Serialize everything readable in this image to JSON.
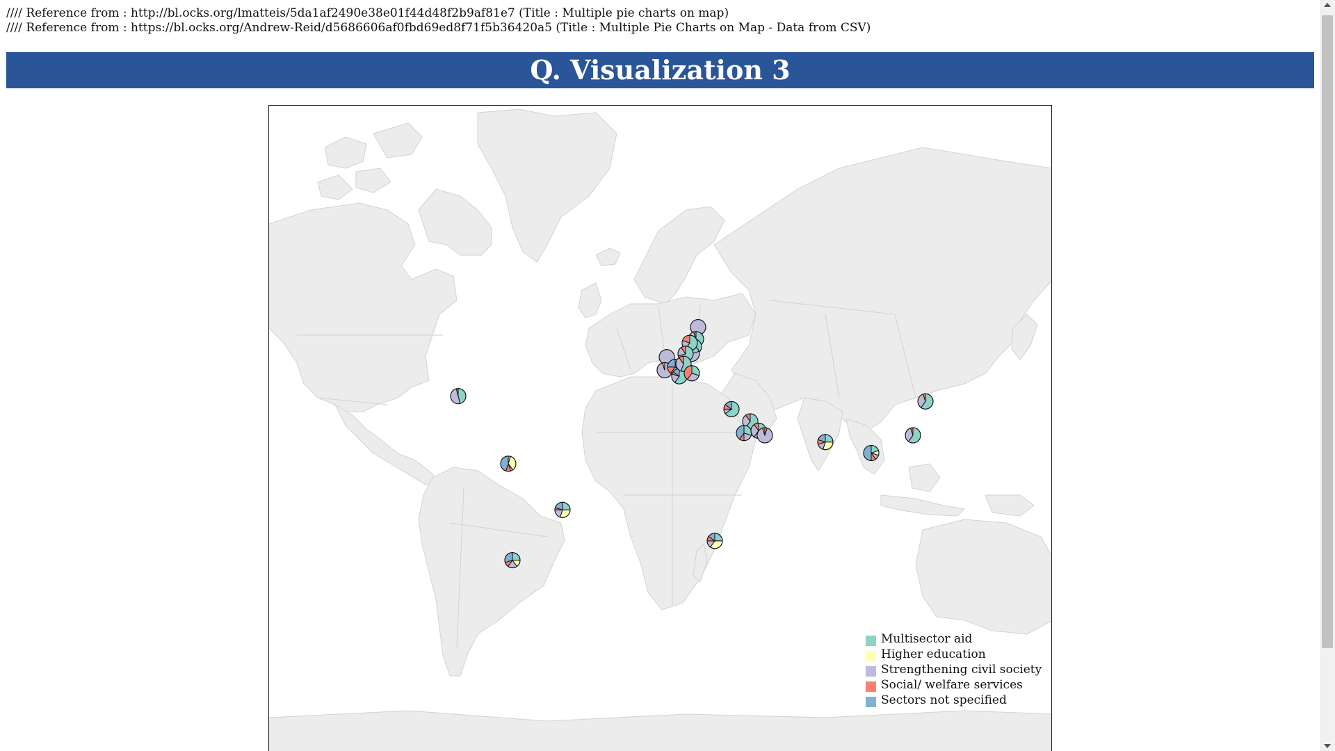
{
  "references": [
    "//// Reference from : http://bl.ocks.org/lmatteis/5da1af2490e38e01f44d48f2b9af81e7 (Title : Multiple pie charts on map)",
    "//// Reference from : https://bl.ocks.org/Andrew-Reid/d5686606af0fbd69ed8f71f5b36420a5 (Title : Multiple Pie Charts on Map - Data from CSV)"
  ],
  "title": "Q. Visualization 3",
  "categories": [
    {
      "label": "Multisector aid",
      "color": "#8dd3c7"
    },
    {
      "label": "Higher education",
      "color": "#ffffb3"
    },
    {
      "label": "Strengthening civil society",
      "color": "#bebada"
    },
    {
      "label": "Social/ welfare services",
      "color": "#fb8072"
    },
    {
      "label": "Sectors not specified",
      "color": "#80b1d3"
    }
  ],
  "map": {
    "land_color": "#ececec",
    "border_color": "#d2d2d2",
    "pie_stroke": "#111111"
  },
  "chart_data": {
    "type": "pie",
    "pies": [
      {
        "lon": -97,
        "lat": 39,
        "values": [
          0.46,
          0,
          0.5,
          0,
          0.04
        ]
      },
      {
        "lon": -73,
        "lat": 10,
        "values": [
          0.05,
          0.35,
          0.05,
          0.1,
          0.45
        ]
      },
      {
        "lon": -47,
        "lat": -12,
        "values": [
          0.25,
          0.3,
          0.2,
          0.05,
          0.2
        ]
      },
      {
        "lon": -71,
        "lat": -34,
        "values": [
          0.25,
          0.15,
          0.2,
          0.1,
          0.3
        ]
      },
      {
        "lon": 26,
        "lat": -26,
        "values": [
          0.25,
          0.35,
          0.15,
          0.1,
          0.15
        ]
      },
      {
        "lon": 18,
        "lat": 60,
        "values": [
          0,
          0,
          1,
          0,
          0
        ]
      },
      {
        "lon": 17,
        "lat": 57,
        "values": [
          0.6,
          0.05,
          0.3,
          0.05,
          0
        ]
      },
      {
        "lon": 16,
        "lat": 55,
        "values": [
          0.5,
          0,
          0.4,
          0.05,
          0.05
        ]
      },
      {
        "lon": 15,
        "lat": 53,
        "values": [
          0.2,
          0,
          0.75,
          0.05,
          0
        ]
      },
      {
        "lon": 14,
        "lat": 56,
        "values": [
          0.6,
          0,
          0.2,
          0.2,
          0
        ]
      },
      {
        "lon": 3,
        "lat": 52,
        "values": [
          0,
          0,
          1,
          0,
          0
        ]
      },
      {
        "lon": 12,
        "lat": 53,
        "values": [
          0.7,
          0,
          0.2,
          0.1,
          0
        ]
      },
      {
        "lon": 2,
        "lat": 48,
        "values": [
          0,
          0,
          0.95,
          0.05,
          0
        ]
      },
      {
        "lon": 7,
        "lat": 49,
        "values": [
          0.35,
          0,
          0.25,
          0.15,
          0.25
        ]
      },
      {
        "lon": 9,
        "lat": 46,
        "values": [
          0.6,
          0,
          0.2,
          0.05,
          0.15
        ]
      },
      {
        "lon": 11,
        "lat": 50,
        "values": [
          0.55,
          0,
          0.35,
          0.1,
          0
        ]
      },
      {
        "lon": 15,
        "lat": 47,
        "values": [
          0.3,
          0,
          0.3,
          0.4,
          0
        ]
      },
      {
        "lon": 34,
        "lat": 34,
        "values": [
          0.65,
          0,
          0.1,
          0.1,
          0.15
        ]
      },
      {
        "lon": 43,
        "lat": 29,
        "values": [
          0.6,
          0,
          0.3,
          0.1,
          0
        ]
      },
      {
        "lon": 40,
        "lat": 24,
        "values": [
          0.3,
          0,
          0.2,
          0.1,
          0.4
        ]
      },
      {
        "lon": 47,
        "lat": 25,
        "values": [
          0.6,
          0,
          0.3,
          0.1,
          0
        ]
      },
      {
        "lon": 50,
        "lat": 23,
        "values": [
          0.05,
          0,
          0.9,
          0.05,
          0
        ]
      },
      {
        "lon": 79,
        "lat": 20,
        "values": [
          0.25,
          0.3,
          0.15,
          0.1,
          0.2
        ]
      },
      {
        "lon": 101,
        "lat": 15,
        "values": [
          0.2,
          0.1,
          0.1,
          0.1,
          0.5
        ]
      },
      {
        "lon": 121,
        "lat": 23,
        "values": [
          0.6,
          0,
          0.35,
          0.05,
          0
        ]
      },
      {
        "lon": 127,
        "lat": 37,
        "values": [
          0.6,
          0,
          0.35,
          0.05,
          0
        ]
      }
    ]
  }
}
